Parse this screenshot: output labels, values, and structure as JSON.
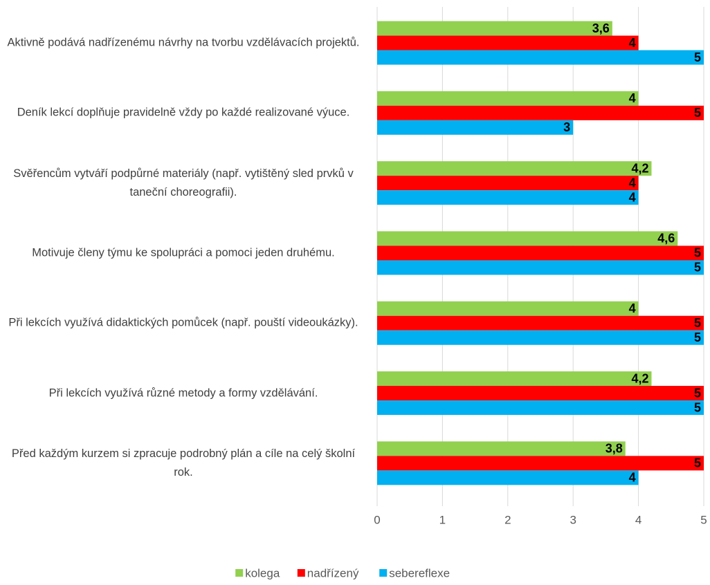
{
  "chart_data": {
    "type": "barh",
    "categories": [
      "Aktivně podává nadřízenému návrhy na tvorbu vzdělávacích projektů.",
      "Deník lekcí doplňuje pravidelně vždy po každé realizované výuce.",
      "Svěřencům vytváří podpůrné materiály (např. vytištěný sled prvků v taneční choreografii).",
      "Motivuje členy týmu ke spolupráci a pomoci jeden druhému.",
      "Při lekcích využívá didaktických pomůcek (např. pouští videoukázky).",
      "Při lekcích využívá různé metody a formy vzdělávání.",
      "Před každým kurzem si zpracuje podrobný plán a cíle na celý školní rok."
    ],
    "series": [
      {
        "name": "kolega",
        "color": "#92d050",
        "values": [
          3.6,
          4,
          4.2,
          4.6,
          4,
          4.2,
          3.8
        ],
        "value_labels": [
          "3,6",
          "4",
          "4,2",
          "4,6",
          "4",
          "4,2",
          "3,8"
        ]
      },
      {
        "name": "nadřízený",
        "color": "#ff0000",
        "values": [
          4,
          5,
          4,
          5,
          5,
          5,
          5
        ]
      },
      {
        "name": "sebereflexe",
        "color": "#00b0f0",
        "values": [
          5,
          3,
          4,
          5,
          5,
          5,
          4
        ]
      }
    ],
    "xlim": [
      0,
      5
    ],
    "xticks": [
      0,
      1,
      2,
      3,
      4,
      5
    ],
    "grid": true,
    "legend": "bottom"
  }
}
